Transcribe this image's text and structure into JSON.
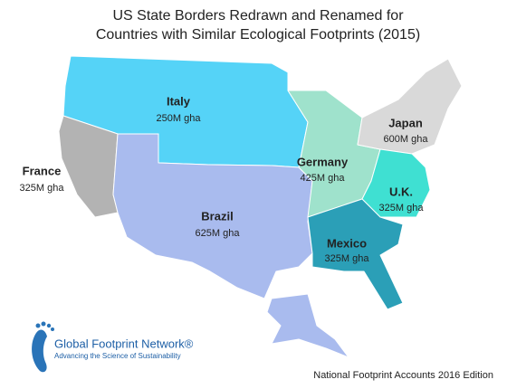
{
  "title_lines": [
    "US State Borders Redrawn and Renamed for",
    "Countries with Similar Ecological Footprints (2015)"
  ],
  "regions": [
    {
      "name": "Italy",
      "value": "250M gha"
    },
    {
      "name": "France",
      "value": "325M gha"
    },
    {
      "name": "Brazil",
      "value": "625M gha"
    },
    {
      "name": "Germany",
      "value": "425M gha"
    },
    {
      "name": "Japan",
      "value": "600M gha"
    },
    {
      "name": "U.K.",
      "value": "325M gha"
    },
    {
      "name": "Mexico",
      "value": "325M gha"
    }
  ],
  "logo": {
    "name": "Global Footprint Network®",
    "tagline": "Advancing the Science of Sustainability"
  },
  "footer": "National Footprint Accounts 2016 Edition"
}
